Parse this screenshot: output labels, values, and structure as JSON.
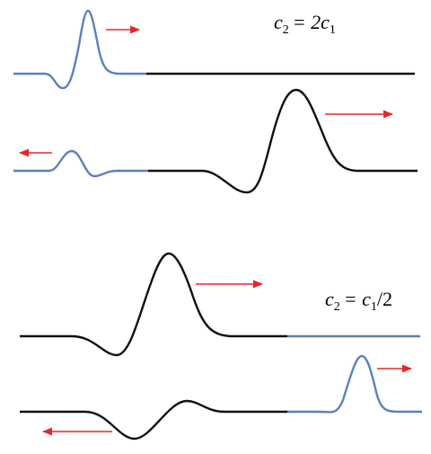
{
  "top_label": {
    "lhs": "c",
    "lhs_sub": "2",
    "rhs": "= 2c",
    "rhs_sub": "1"
  },
  "bottom_label": {
    "lhs": "c",
    "lhs_sub": "2",
    "rhs": "= c",
    "rhs_sub": "1",
    "tail": "/2"
  }
}
